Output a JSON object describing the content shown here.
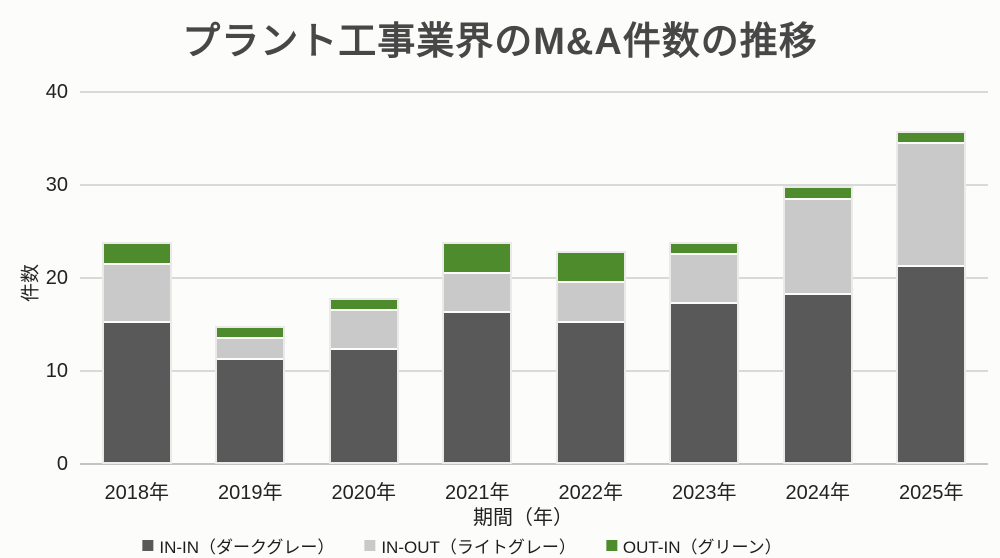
{
  "title": "プラント工事業界のM&A件数の推移",
  "chart_data": {
    "type": "bar",
    "stacked": true,
    "title": "プラント工事業界のM&A件数の推移",
    "categories": [
      "2018年",
      "2019年",
      "2020年",
      "2021年",
      "2022年",
      "2023年",
      "2024年",
      "2025年"
    ],
    "series": [
      {
        "name": "IN-IN（ダークグレー）",
        "color": "#595959",
        "values": [
          15,
          11,
          12,
          16,
          15,
          17,
          18,
          21
        ]
      },
      {
        "name": "IN-OUT（ライトグレー）",
        "color": "#c9c9c9",
        "values": [
          6,
          2,
          4,
          4,
          4,
          5,
          10,
          13
        ]
      },
      {
        "name": "OUT-IN（グリーン）",
        "color": "#4e8b2c",
        "values": [
          2,
          1,
          1,
          3,
          3,
          1,
          1,
          1
        ]
      }
    ],
    "totals": [
      23,
      14,
      17,
      23,
      22,
      23,
      29,
      35
    ],
    "xlabel": "期間（年）",
    "ylabel": "件数",
    "ylim": [
      0,
      40
    ],
    "yticks": [
      0,
      10,
      20,
      30,
      40
    ],
    "grid": true,
    "legend_position": "bottom"
  },
  "colors": {
    "background": "#fcfcfb",
    "title_text": "#474747",
    "axis_text": "#222222",
    "gridline": "#d9d9d9",
    "baseline": "#c4c4c4",
    "bar_border": "#eceae8"
  }
}
